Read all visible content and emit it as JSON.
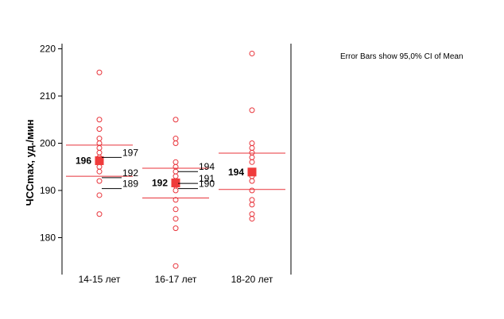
{
  "chart_data": {
    "type": "scatter",
    "ylabel": "ЧССmax, уд./мин",
    "ylim": [
      172,
      222
    ],
    "yticks": [
      180,
      190,
      200,
      210,
      220
    ],
    "categories": [
      "14-15 лет",
      "16-17 лет",
      "18-20 лет"
    ],
    "note": "Error Bars show 95,0% CI of Mean",
    "colors": {
      "points": "#e8333a",
      "mean": "#ef3b3b",
      "error_bar": "#e8333a",
      "axis": "#000000",
      "annotation": "#000000"
    },
    "groups": [
      {
        "category": "14-15 лет",
        "points": [
          215,
          205,
          203,
          201,
          200,
          199,
          198,
          197,
          196,
          195,
          194,
          192,
          189,
          185
        ],
        "mean": 196.3,
        "mean_label": "196",
        "ci": [
          193.0,
          199.6
        ],
        "annotations": [
          {
            "label": "197",
            "value": 197.0
          },
          {
            "label": "192",
            "value": 192.7
          },
          {
            "label": "189",
            "value": 190.4
          }
        ]
      },
      {
        "category": "16-17 лет",
        "points": [
          205,
          201,
          200,
          196,
          195,
          194,
          193,
          192,
          191,
          190,
          188,
          186,
          184,
          182,
          174
        ],
        "mean": 191.6,
        "mean_label": "192",
        "ci": [
          188.4,
          194.7
        ],
        "annotations": [
          {
            "label": "194",
            "value": 194.0
          },
          {
            "label": "191",
            "value": 191.5
          },
          {
            "label": "190",
            "value": 190.4
          }
        ]
      },
      {
        "category": "18-20 лет",
        "points": [
          219,
          207,
          200,
          199,
          198,
          197,
          196,
          194,
          193,
          192,
          190,
          188,
          187,
          185,
          184
        ],
        "mean": 193.9,
        "mean_label": "194",
        "ci": [
          190.2,
          197.9
        ],
        "annotations": []
      }
    ]
  }
}
